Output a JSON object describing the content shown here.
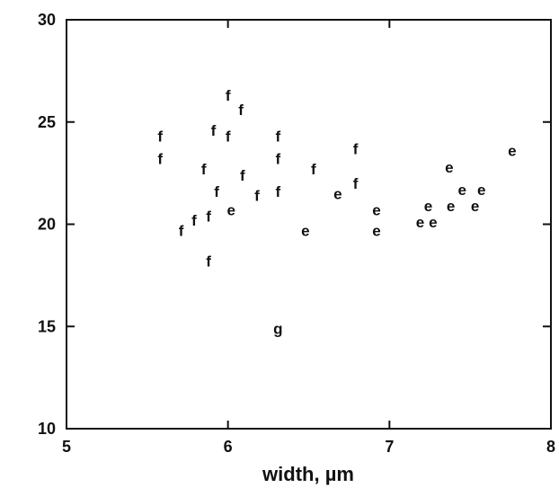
{
  "chart_data": {
    "type": "scatter",
    "title": "",
    "xlabel": "width, µm",
    "ylabel": "",
    "xlim": [
      5,
      8
    ],
    "ylim": [
      10,
      30
    ],
    "x_ticks": [
      5,
      6,
      7,
      8
    ],
    "y_ticks": [
      10,
      15,
      20,
      25,
      30
    ],
    "grid": false,
    "legend": "none",
    "series": [
      {
        "marker": "f",
        "points": [
          {
            "x": 5.58,
            "y": 24.3
          },
          {
            "x": 5.58,
            "y": 23.2
          },
          {
            "x": 5.71,
            "y": 19.7
          },
          {
            "x": 5.79,
            "y": 20.2
          },
          {
            "x": 5.85,
            "y": 22.7
          },
          {
            "x": 5.88,
            "y": 20.4
          },
          {
            "x": 5.88,
            "y": 18.2
          },
          {
            "x": 5.91,
            "y": 24.6
          },
          {
            "x": 5.93,
            "y": 21.6
          },
          {
            "x": 6.0,
            "y": 26.3
          },
          {
            "x": 6.0,
            "y": 24.3
          },
          {
            "x": 6.08,
            "y": 25.6
          },
          {
            "x": 6.09,
            "y": 22.4
          },
          {
            "x": 6.18,
            "y": 21.4
          },
          {
            "x": 6.31,
            "y": 24.3
          },
          {
            "x": 6.31,
            "y": 23.2
          },
          {
            "x": 6.31,
            "y": 21.6
          },
          {
            "x": 6.53,
            "y": 22.7
          },
          {
            "x": 6.79,
            "y": 23.7
          },
          {
            "x": 6.79,
            "y": 22.0
          }
        ]
      },
      {
        "marker": "e",
        "points": [
          {
            "x": 6.02,
            "y": 20.7
          },
          {
            "x": 6.48,
            "y": 19.7
          },
          {
            "x": 6.68,
            "y": 21.5
          },
          {
            "x": 6.92,
            "y": 20.7
          },
          {
            "x": 6.92,
            "y": 19.7
          },
          {
            "x": 7.19,
            "y": 20.1
          },
          {
            "x": 7.24,
            "y": 20.9
          },
          {
            "x": 7.27,
            "y": 20.1
          },
          {
            "x": 7.37,
            "y": 22.8
          },
          {
            "x": 7.38,
            "y": 20.9
          },
          {
            "x": 7.45,
            "y": 21.7
          },
          {
            "x": 7.53,
            "y": 20.9
          },
          {
            "x": 7.57,
            "y": 21.7
          },
          {
            "x": 7.76,
            "y": 23.6
          }
        ]
      },
      {
        "marker": "g",
        "points": [
          {
            "x": 6.31,
            "y": 14.9
          }
        ]
      }
    ]
  }
}
